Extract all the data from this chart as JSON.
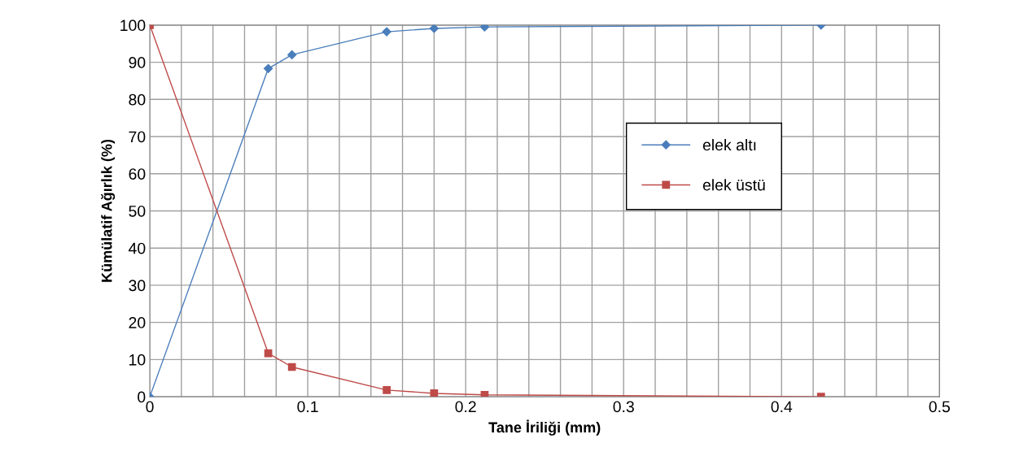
{
  "chart_data": {
    "type": "line",
    "xlabel": "Tane İriliği (mm)",
    "ylabel": "Kümülatif Ağırlık (%)",
    "x": [
      0,
      0.075,
      0.09,
      0.15,
      0.18,
      0.212,
      0.425
    ],
    "series": [
      {
        "name": "elek altı",
        "color": "#4a7ebb",
        "marker": "diamond",
        "values": [
          0,
          88.3,
          92,
          98.2,
          99.1,
          99.5,
          100
        ]
      },
      {
        "name": "elek üstü",
        "color": "#be4b48",
        "marker": "square",
        "values": [
          100,
          11.7,
          8,
          1.8,
          0.9,
          0.5,
          0
        ]
      }
    ],
    "xlim": [
      0,
      0.5
    ],
    "ylim": [
      0,
      100
    ],
    "xticks": [
      0,
      {
        "value": 0.02,
        "label": null
      },
      {
        "value": 0.04,
        "label": null
      },
      {
        "value": 0.06,
        "label": null
      },
      {
        "value": 0.08,
        "label": null
      },
      0.1,
      {
        "value": 0.12,
        "label": null
      },
      {
        "value": 0.14,
        "label": null
      },
      {
        "value": 0.16,
        "label": null
      },
      {
        "value": 0.18,
        "label": null
      },
      0.2,
      {
        "value": 0.22,
        "label": null
      },
      {
        "value": 0.24,
        "label": null
      },
      {
        "value": 0.26,
        "label": null
      },
      {
        "value": 0.28,
        "label": null
      },
      0.3,
      {
        "value": 0.32,
        "label": null
      },
      {
        "value": 0.34,
        "label": null
      },
      {
        "value": 0.36,
        "label": null
      },
      {
        "value": 0.38,
        "label": null
      },
      0.4,
      {
        "value": 0.42,
        "label": null
      },
      {
        "value": 0.44,
        "label": null
      },
      {
        "value": 0.46,
        "label": null
      },
      {
        "value": 0.48,
        "label": null
      },
      0.5
    ],
    "yticks": [
      0,
      10,
      20,
      30,
      40,
      50,
      60,
      70,
      80,
      90,
      100
    ],
    "grid": true,
    "legend": "right",
    "line_style": "solid"
  }
}
